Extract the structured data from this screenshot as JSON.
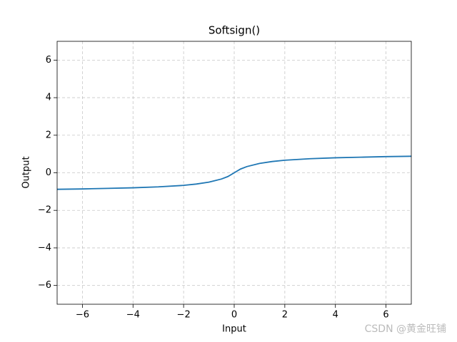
{
  "chart_data": {
    "type": "line",
    "title": "Softsign()",
    "x_label": "Input",
    "y_label": "Output",
    "x": [
      -7,
      -6,
      -5,
      -4,
      -3,
      -2,
      -1.5,
      -1,
      -0.5,
      -0.25,
      0,
      0.25,
      0.5,
      1,
      1.5,
      2,
      3,
      4,
      5,
      6,
      7
    ],
    "series": [
      {
        "color": "#1f77b4",
        "values": [
          -0.88,
          -0.86,
          -0.83,
          -0.8,
          -0.75,
          -0.67,
          -0.6,
          -0.5,
          -0.33,
          -0.2,
          0,
          0.2,
          0.33,
          0.5,
          0.6,
          0.67,
          0.75,
          0.8,
          0.83,
          0.86,
          0.88
        ]
      }
    ],
    "xlim": [
      -7,
      7
    ],
    "ylim": [
      -7,
      7
    ],
    "xticks": [
      {
        "value": -6,
        "label": "−6"
      },
      {
        "value": -4,
        "label": "−4"
      },
      {
        "value": -2,
        "label": "−2"
      },
      0,
      2,
      4,
      6
    ],
    "yticks": [
      {
        "value": -6,
        "label": "−6"
      },
      {
        "value": -4,
        "label": "−4"
      },
      {
        "value": -2,
        "label": "−2"
      },
      0,
      2,
      4,
      6
    ],
    "grid": true,
    "watermark": "CSDN @黄金旺铺"
  }
}
